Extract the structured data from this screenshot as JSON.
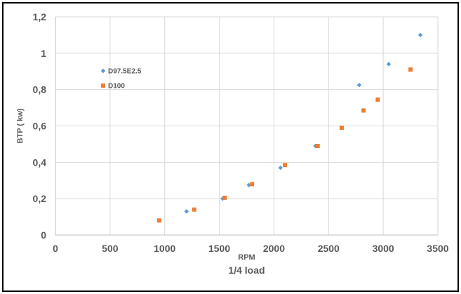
{
  "chart_data": {
    "type": "scatter",
    "title": "",
    "xlabel": "RPM",
    "ylabel": "BTP ( kw)",
    "subtitle_below": "1/4 load",
    "xlim": [
      0,
      3500
    ],
    "ylim": [
      0,
      1.2
    ],
    "x_ticks": [
      "0",
      "500",
      "1000",
      "1500",
      "2000",
      "2500",
      "3000",
      "3500"
    ],
    "y_ticks": [
      "0",
      "0,2",
      "0,4",
      "0,6",
      "0,8",
      "1",
      "1,2"
    ],
    "grid": true,
    "legend_position": "upper-left",
    "series": [
      {
        "name": "D97.5E2.5",
        "marker": "diamond",
        "color": "#5B9BD5",
        "points": [
          {
            "x": 1200,
            "y": 0.13
          },
          {
            "x": 1530,
            "y": 0.2
          },
          {
            "x": 1770,
            "y": 0.275
          },
          {
            "x": 2060,
            "y": 0.37
          },
          {
            "x": 2380,
            "y": 0.49
          },
          {
            "x": 2780,
            "y": 0.825
          },
          {
            "x": 3050,
            "y": 0.94
          },
          {
            "x": 3340,
            "y": 1.1
          }
        ]
      },
      {
        "name": "D100",
        "marker": "square",
        "color": "#ED7D31",
        "points": [
          {
            "x": 950,
            "y": 0.08
          },
          {
            "x": 1270,
            "y": 0.14
          },
          {
            "x": 1550,
            "y": 0.205
          },
          {
            "x": 1800,
            "y": 0.28
          },
          {
            "x": 2100,
            "y": 0.385
          },
          {
            "x": 2400,
            "y": 0.49
          },
          {
            "x": 2620,
            "y": 0.59
          },
          {
            "x": 2820,
            "y": 0.685
          },
          {
            "x": 2950,
            "y": 0.745
          },
          {
            "x": 3250,
            "y": 0.91
          }
        ]
      }
    ]
  }
}
